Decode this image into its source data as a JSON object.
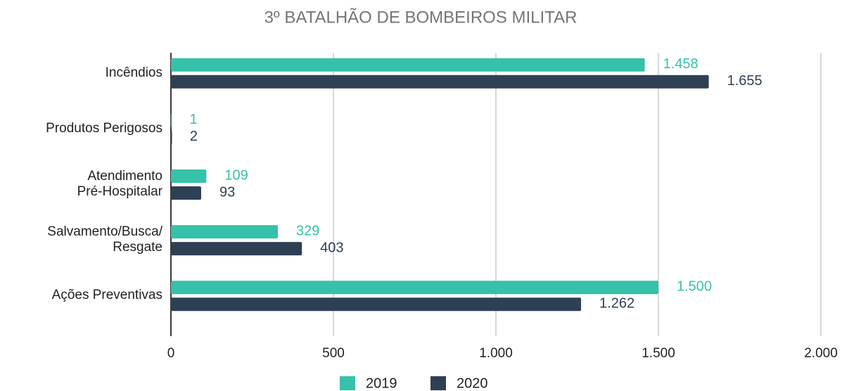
{
  "chart_data": {
    "type": "hbar",
    "title": "3º BATALHÃO DE BOMBEIROS MILITAR",
    "categories": [
      "Incêndios",
      "Produtos Perigosos",
      "Atendimento\nPré-Hospitalar",
      "Salvamento/Busca/\nResgate",
      "Ações Preventivas"
    ],
    "series": [
      {
        "name": "2019",
        "color": "#36c1aa",
        "values": [
          1458,
          1,
          109,
          329,
          1500
        ],
        "value_labels": [
          "1.458",
          "1",
          "109",
          "329",
          "1.500"
        ]
      },
      {
        "name": "2020",
        "color": "#2e4054",
        "values": [
          1655,
          2,
          93,
          403,
          1262
        ],
        "value_labels": [
          "1.655",
          "2",
          "93",
          "403",
          "1.262"
        ]
      }
    ],
    "xlim": [
      0,
      2000
    ],
    "xticks": [
      0,
      500,
      {
        "value": 1000,
        "label": "1.000"
      },
      {
        "value": 1500,
        "label": "1.500"
      },
      {
        "value": 2000,
        "label": "2.000"
      }
    ],
    "grid": true,
    "legend": "bottom"
  }
}
